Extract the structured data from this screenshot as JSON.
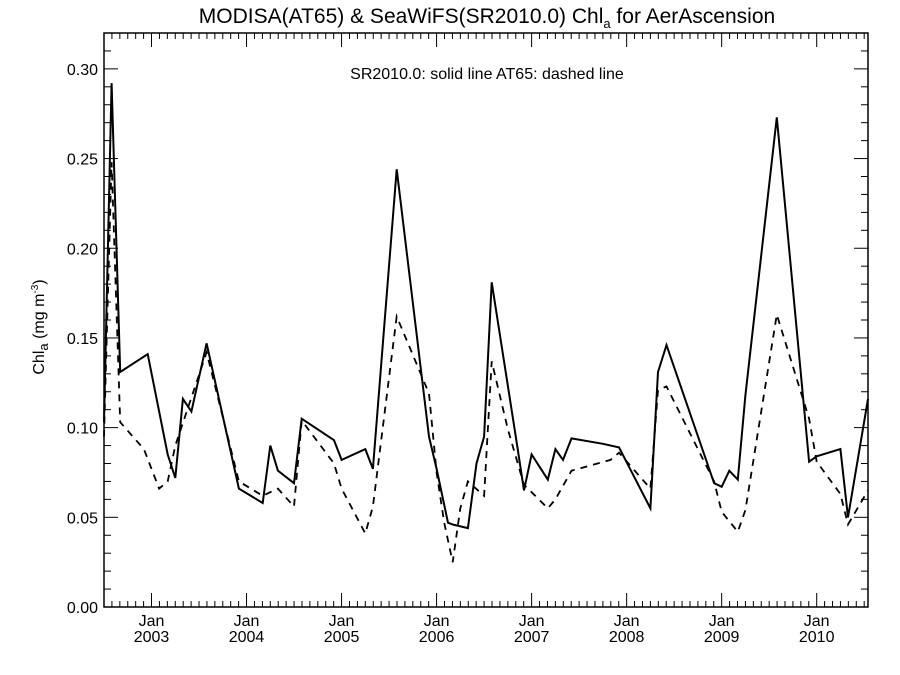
{
  "chart_data": {
    "type": "line",
    "title": {
      "prefix": "MODISA(AT65) & SeaWiFS(SR2010.0)  Chl",
      "subscript": "a",
      "suffix": " for AerAscension"
    },
    "ylabel": {
      "prefix": "Chl",
      "subscript": "a",
      "middle": " (mg m",
      "superscript": "-3",
      "suffix": ")"
    },
    "annotation": "SR2010.0: solid line   AT65: dashed line",
    "ylim": [
      0,
      0.32
    ],
    "xlim": [
      2002.5,
      2010.54
    ],
    "y_ticks": [
      {
        "value": 0.0,
        "label": "0.00"
      },
      {
        "value": 0.05,
        "label": "0.05"
      },
      {
        "value": 0.1,
        "label": "0.10"
      },
      {
        "value": 0.15,
        "label": "0.15"
      },
      {
        "value": 0.2,
        "label": "0.20"
      },
      {
        "value": 0.25,
        "label": "0.25"
      },
      {
        "value": 0.3,
        "label": "0.30"
      }
    ],
    "y_minor_step": 0.01,
    "x_ticks": [
      {
        "value": 2003,
        "month": "Jan",
        "year": "2003"
      },
      {
        "value": 2004,
        "month": "Jan",
        "year": "2004"
      },
      {
        "value": 2005,
        "month": "Jan",
        "year": "2005"
      },
      {
        "value": 2006,
        "month": "Jan",
        "year": "2006"
      },
      {
        "value": 2007,
        "month": "Jan",
        "year": "2007"
      },
      {
        "value": 2008,
        "month": "Jan",
        "year": "2008"
      },
      {
        "value": 2009,
        "month": "Jan",
        "year": "2009"
      },
      {
        "value": 2010,
        "month": "Jan",
        "year": "2010"
      }
    ],
    "grid": false,
    "series": [
      {
        "style": "solid",
        "x": [
          2002.5,
          2002.58,
          2002.67,
          2002.96,
          2003.17,
          2003.25,
          2003.33,
          2003.42,
          2003.58,
          2003.92,
          2004.17,
          2004.25,
          2004.33,
          2004.5,
          2004.58,
          2004.92,
          2005.0,
          2005.25,
          2005.33,
          2005.58,
          2005.92,
          2006.0,
          2006.12,
          2006.17,
          2006.33,
          2006.42,
          2006.5,
          2006.58,
          2006.83,
          2006.92,
          2007.0,
          2007.17,
          2007.25,
          2007.33,
          2007.42,
          2007.75,
          2007.92,
          2008.25,
          2008.33,
          2008.42,
          2008.92,
          2009.0,
          2009.08,
          2009.17,
          2009.25,
          2009.58,
          2009.92,
          2010.0,
          2010.25,
          2010.33,
          2010.54
        ],
        "values": [
          0.103,
          0.292,
          0.131,
          0.141,
          0.085,
          0.072,
          0.116,
          0.109,
          0.147,
          0.066,
          0.058,
          0.09,
          0.076,
          0.069,
          0.105,
          0.093,
          0.082,
          0.088,
          0.077,
          0.244,
          0.095,
          0.077,
          0.047,
          0.046,
          0.044,
          0.08,
          0.095,
          0.181,
          0.096,
          0.065,
          0.085,
          0.071,
          0.088,
          0.082,
          0.094,
          0.091,
          0.089,
          0.055,
          0.131,
          0.146,
          0.069,
          0.067,
          0.076,
          0.071,
          0.118,
          0.273,
          0.081,
          0.084,
          0.088,
          0.05,
          0.116
        ]
      },
      {
        "style": "dashed",
        "x": [
          2002.5,
          2002.58,
          2002.67,
          2002.92,
          2003.08,
          2003.17,
          2003.25,
          2003.58,
          2003.92,
          2004.17,
          2004.33,
          2004.5,
          2004.58,
          2004.92,
          2005.0,
          2005.25,
          2005.33,
          2005.58,
          2005.92,
          2006.0,
          2006.08,
          2006.17,
          2006.25,
          2006.33,
          2006.5,
          2006.58,
          2006.75,
          2006.92,
          2007.0,
          2007.17,
          2007.25,
          2007.42,
          2007.83,
          2007.92,
          2008.25,
          2008.33,
          2008.42,
          2008.92,
          2009.0,
          2009.17,
          2009.25,
          2009.58,
          2009.92,
          2010.0,
          2010.25,
          2010.33,
          2010.54
        ],
        "values": [
          0.095,
          0.248,
          0.103,
          0.088,
          0.066,
          0.07,
          0.09,
          0.142,
          0.07,
          0.062,
          0.066,
          0.056,
          0.104,
          0.08,
          0.066,
          0.041,
          0.056,
          0.162,
          0.119,
          0.075,
          0.047,
          0.025,
          0.055,
          0.07,
          0.062,
          0.137,
          0.099,
          0.068,
          0.064,
          0.055,
          0.06,
          0.076,
          0.082,
          0.086,
          0.066,
          0.121,
          0.123,
          0.07,
          0.053,
          0.042,
          0.054,
          0.163,
          0.105,
          0.081,
          0.063,
          0.046,
          0.065
        ]
      }
    ]
  }
}
